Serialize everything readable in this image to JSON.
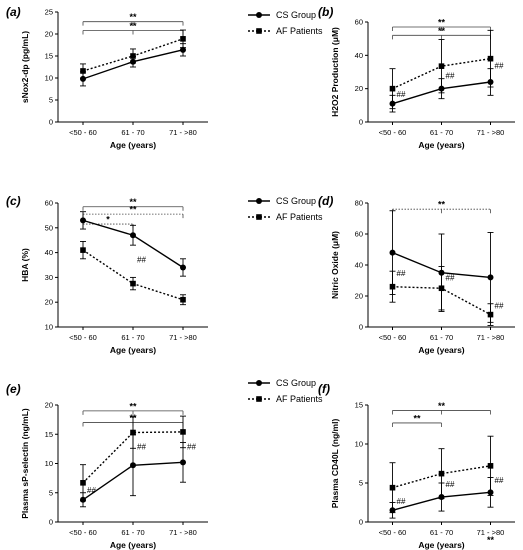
{
  "chart_data": [
    {
      "type": "line",
      "panel_label": "(a)",
      "categories": [
        "<50 - 60",
        "61 - 70",
        "71 - >80"
      ],
      "xlabel": "Age (years)",
      "ylabel": "sNox2-dp (pg/mL)",
      "ylim": [
        0,
        25
      ],
      "yticks": [
        0,
        5,
        10,
        15,
        20,
        25
      ],
      "series": [
        {
          "name": "CS Group",
          "values": [
            9.8,
            13.7,
            16.4
          ],
          "err": [
            1.6,
            1.2,
            1.4
          ],
          "style": "solid",
          "marker": "circle"
        },
        {
          "name": "AF Patients",
          "values": [
            11.6,
            15.0,
            18.9
          ],
          "err": [
            1.6,
            1.6,
            2.0
          ],
          "style": "dotted",
          "marker": "square"
        }
      ],
      "brackets": [
        {
          "from": 0,
          "to": 2,
          "level": 22.8,
          "ticks": [
            0,
            1,
            2
          ],
          "label": "**",
          "style": "solid"
        },
        {
          "from": 0,
          "to": 2,
          "level": 20.8,
          "ticks": [
            0,
            1,
            2
          ],
          "label": "**",
          "style": "solid"
        }
      ],
      "marks": [],
      "legend": {
        "show": true
      }
    },
    {
      "type": "line",
      "panel_label": "(b)",
      "categories": [
        "<50 - 60",
        "61 - 70",
        "71 - >80"
      ],
      "xlabel": "Age (years)",
      "ylabel": "H2O2 Production (μM)",
      "ylim": [
        0,
        60
      ],
      "yticks": [
        0,
        20,
        40,
        60
      ],
      "series": [
        {
          "name": "CS Group",
          "values": [
            11,
            20,
            24
          ],
          "err": [
            5,
            6,
            8
          ],
          "style": "solid",
          "marker": "circle"
        },
        {
          "name": "AF Patients",
          "values": [
            20,
            33.5,
            38
          ],
          "err": [
            12,
            16,
            17
          ],
          "style": "dotted",
          "marker": "square"
        }
      ],
      "brackets": [
        {
          "from": 0,
          "to": 2,
          "level": 57,
          "ticks": [
            0,
            1,
            2
          ],
          "label": "**",
          "style": "solid"
        },
        {
          "from": 0,
          "to": 2,
          "level": 52,
          "ticks": [
            0,
            1,
            2
          ],
          "label": "**",
          "style": "solid"
        }
      ],
      "marks": [
        {
          "text": "##",
          "cat": 0,
          "y": 15,
          "side": "right"
        },
        {
          "text": "##",
          "cat": 1,
          "y": 26,
          "side": "right"
        },
        {
          "text": "##",
          "cat": 2,
          "y": 32,
          "side": "right"
        }
      ],
      "legend": {
        "show": false
      }
    },
    {
      "type": "line",
      "panel_label": "(c)",
      "categories": [
        "<50 - 60",
        "61 - 70",
        "71 - >80"
      ],
      "xlabel": "Age (years)",
      "ylabel": "HBA (%)",
      "ylim": [
        10,
        60
      ],
      "yticks": [
        10,
        20,
        30,
        40,
        50,
        60
      ],
      "series": [
        {
          "name": "CS Group",
          "values": [
            53,
            47,
            34
          ],
          "err": [
            3.5,
            4,
            3.5
          ],
          "style": "solid",
          "marker": "circle"
        },
        {
          "name": "AF Patients",
          "values": [
            41,
            27.5,
            21
          ],
          "err": [
            3.5,
            2.5,
            2
          ],
          "style": "dotted",
          "marker": "square"
        }
      ],
      "brackets": [
        {
          "from": 0,
          "to": 2,
          "level": 58.5,
          "ticks": [
            0,
            2
          ],
          "label": "**",
          "style": "solid"
        },
        {
          "from": 0,
          "to": 2,
          "level": 55.5,
          "ticks": [
            0,
            2
          ],
          "label": "**",
          "style": "dotted"
        },
        {
          "from": 0,
          "to": 1,
          "level": 51.5,
          "ticks": [
            0,
            1
          ],
          "label": "*",
          "style": "dotted"
        }
      ],
      "marks": [
        {
          "text": "##",
          "cat": 1,
          "y": 36,
          "side": "right"
        }
      ],
      "legend": {
        "show": true
      }
    },
    {
      "type": "line",
      "panel_label": "(d)",
      "categories": [
        "<50 - 60",
        "61 - 70",
        "71 - >80"
      ],
      "xlabel": "Age (years)",
      "ylabel": "Nitric Oxide (μM)",
      "ylim": [
        0,
        80
      ],
      "yticks": [
        0,
        20,
        40,
        60,
        80
      ],
      "series": [
        {
          "name": "CS Group",
          "values": [
            48,
            35,
            32
          ],
          "err": [
            27,
            25,
            29
          ],
          "style": "solid",
          "marker": "circle"
        },
        {
          "name": "AF Patients",
          "values": [
            26,
            25,
            8
          ],
          "err": [
            10,
            14,
            7
          ],
          "style": "dotted",
          "marker": "square"
        }
      ],
      "brackets": [
        {
          "from": 0,
          "to": 2,
          "level": 76,
          "ticks": [
            0,
            1,
            2
          ],
          "label": "**",
          "style": "dotted"
        }
      ],
      "marks": [
        {
          "text": "##",
          "cat": 0,
          "y": 33,
          "side": "right"
        },
        {
          "text": "##",
          "cat": 1,
          "y": 30,
          "side": "right"
        },
        {
          "text": "##",
          "cat": 2,
          "y": 12,
          "side": "right"
        }
      ],
      "legend": {
        "show": false
      }
    },
    {
      "type": "line",
      "panel_label": "(e)",
      "categories": [
        "<50 - 60",
        "61 - 70",
        "71 - >80"
      ],
      "xlabel": "Age (years)",
      "ylabel": "Plasma sP-selectin (ng/mL)",
      "ylim": [
        0,
        20
      ],
      "yticks": [
        0,
        5,
        10,
        15,
        20
      ],
      "series": [
        {
          "name": "CS Group",
          "values": [
            3.8,
            9.7,
            10.2
          ],
          "err": [
            1.2,
            5.2,
            3.4
          ],
          "style": "solid",
          "marker": "circle"
        },
        {
          "name": "AF Patients",
          "values": [
            6.7,
            15.3,
            15.4
          ],
          "err": [
            3.1,
            2.7,
            2.7
          ],
          "style": "dotted",
          "marker": "square"
        }
      ],
      "brackets": [
        {
          "from": 0,
          "to": 2,
          "level": 19,
          "ticks": [
            0,
            1,
            2
          ],
          "label": "**",
          "style": "solid"
        },
        {
          "from": 0,
          "to": 2,
          "level": 17,
          "ticks": [
            0,
            1,
            2
          ],
          "label": "**",
          "style": "solid"
        }
      ],
      "marks": [
        {
          "text": "##",
          "cat": 0,
          "y": 5.0,
          "side": "right"
        },
        {
          "text": "##",
          "cat": 1,
          "y": 12.4,
          "side": "right"
        },
        {
          "text": "##",
          "cat": 2,
          "y": 12.4,
          "side": "right"
        }
      ],
      "legend": {
        "show": true
      }
    },
    {
      "type": "line",
      "panel_label": "(f)",
      "categories": [
        "<50 - 60",
        "61 - 70",
        "71 - >80"
      ],
      "xlabel": "Age (years)",
      "ylabel": "Plasma CD40L (ng/ml)",
      "ylim": [
        0,
        15
      ],
      "yticks": [
        0,
        5,
        10,
        15
      ],
      "series": [
        {
          "name": "CS Group",
          "values": [
            1.5,
            3.2,
            3.8
          ],
          "err": [
            1.0,
            1.8,
            1.9
          ],
          "style": "solid",
          "marker": "circle"
        },
        {
          "name": "AF Patients",
          "values": [
            4.4,
            6.2,
            7.2
          ],
          "err": [
            3.2,
            3.2,
            3.8
          ],
          "style": "dotted",
          "marker": "square"
        }
      ],
      "brackets": [
        {
          "from": 0,
          "to": 2,
          "level": 14.3,
          "ticks": [
            0,
            1,
            2
          ],
          "label": "**",
          "style": "solid"
        },
        {
          "from": 0,
          "to": 1,
          "level": 12.7,
          "ticks": [
            0,
            1
          ],
          "label": "**",
          "style": "solid"
        }
      ],
      "marks": [
        {
          "text": "##",
          "cat": 0,
          "y": 2.3,
          "side": "right"
        },
        {
          "text": "##",
          "cat": 1,
          "y": 4.5,
          "side": "right"
        },
        {
          "text": "##",
          "cat": 2,
          "y": 5.0,
          "side": "right"
        },
        {
          "text": "**",
          "cat": 2,
          "y": -1.5,
          "side": "center"
        }
      ],
      "legend": {
        "show": false
      }
    }
  ]
}
